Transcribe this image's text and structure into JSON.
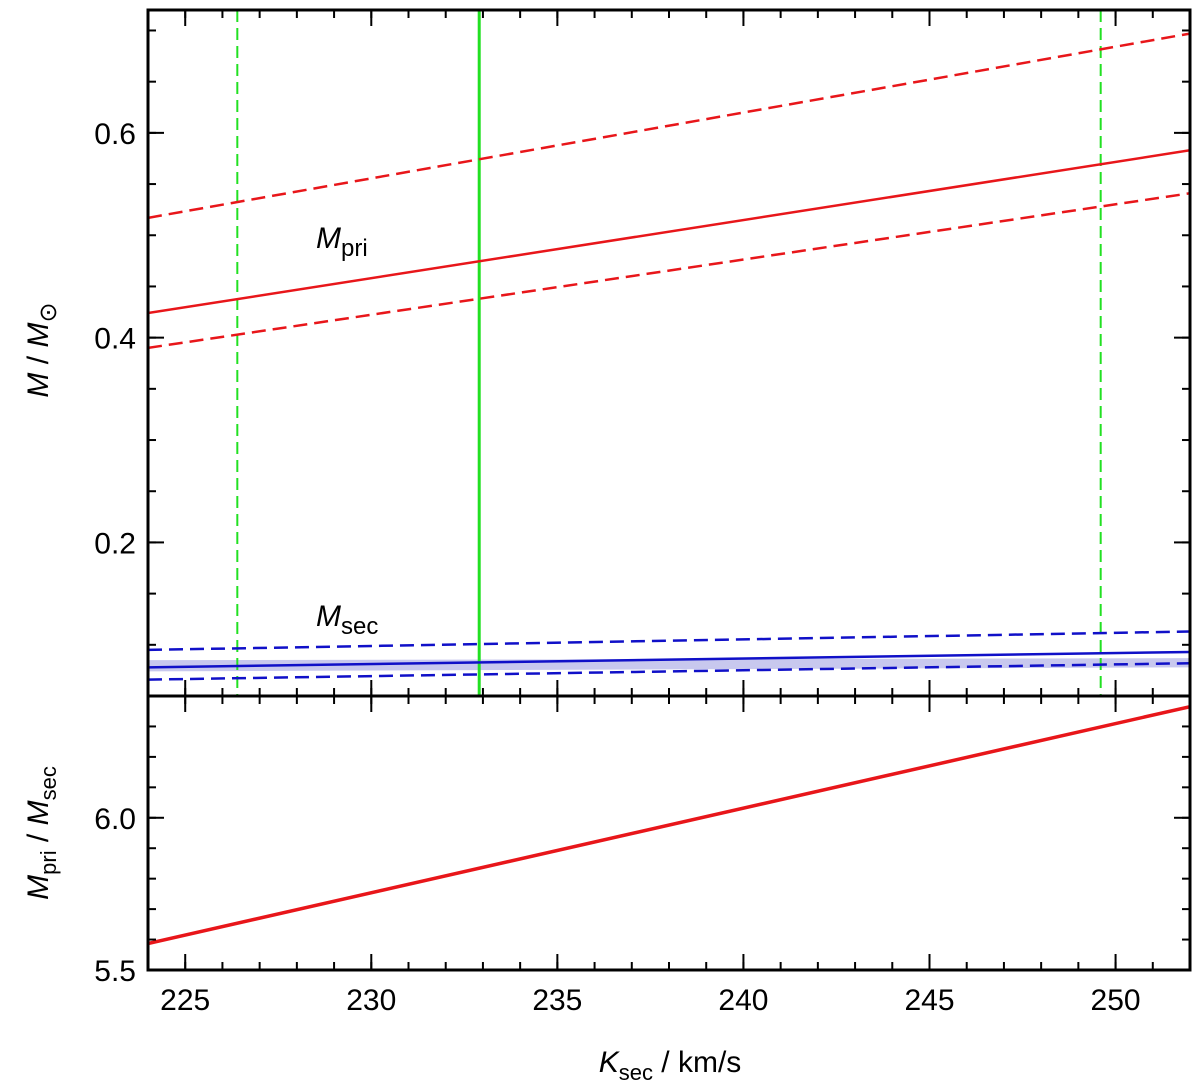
{
  "chart_data": [
    {
      "type": "line",
      "ylabel": [
        "M",
        " / ",
        "M",
        "⊙"
      ],
      "xlim": [
        224,
        252
      ],
      "ylim": [
        0.05,
        0.72
      ],
      "yticks": [
        0.2,
        0.4,
        0.6
      ],
      "xticks": [
        225,
        230,
        235,
        240,
        245,
        250
      ],
      "xminor": [
        224,
        225,
        226,
        227,
        228,
        229,
        230,
        231,
        232,
        233,
        234,
        235,
        236,
        237,
        238,
        239,
        240,
        241,
        242,
        243,
        244,
        245,
        246,
        247,
        248,
        249,
        250,
        251,
        252
      ],
      "yminor": [
        0.05,
        0.1,
        0.15,
        0.2,
        0.25,
        0.3,
        0.35,
        0.4,
        0.45,
        0.5,
        0.55,
        0.6,
        0.65,
        0.7
      ],
      "x": [
        224,
        252
      ],
      "band": {
        "lower": [
          0.074,
          0.078
        ],
        "upper": [
          0.085,
          0.087
        ],
        "color": "#c8c8ee"
      },
      "series": [
        {
          "values": [
            0.424,
            0.583
          ],
          "color": "#e8161a",
          "style": "solid"
        },
        {
          "values": [
            0.517,
            0.697
          ],
          "color": "#e8161a",
          "style": "dashed"
        },
        {
          "values": [
            0.39,
            0.541
          ],
          "color": "#e8161a",
          "style": "dashed"
        },
        {
          "values": [
            0.078,
            0.093
          ],
          "color": "#1010c8",
          "style": "solid"
        },
        {
          "values": [
            0.095,
            0.113
          ],
          "color": "#1010c8",
          "style": "dashed"
        },
        {
          "values": [
            0.066,
            0.082
          ],
          "color": "#1010c8",
          "style": "dashed"
        }
      ],
      "vlines": [
        {
          "x": 232.9,
          "style": "solid",
          "color": "#22e022"
        },
        {
          "x": 226.4,
          "style": "dashed",
          "color": "#22e022"
        },
        {
          "x": 249.6,
          "style": "dashed",
          "color": "#22e022"
        }
      ],
      "annotations": [
        {
          "parts": [
            "M",
            "pri"
          ],
          "color": "#e8161a"
        },
        {
          "parts": [
            "M",
            "sec"
          ],
          "color": "#1010c8"
        }
      ]
    },
    {
      "type": "line",
      "ylabel": [
        "M",
        "pri",
        " / ",
        "M",
        "sec"
      ],
      "xlabel": [
        "K",
        "sec",
        " / km/s"
      ],
      "xlim": [
        224,
        252
      ],
      "ylim": [
        5.5,
        6.4
      ],
      "yticks": [
        5.5,
        {
          "value": 6,
          "label": "6.0"
        }
      ],
      "xticks": [
        225,
        230,
        235,
        240,
        245,
        250
      ],
      "xminor": [
        224,
        225,
        226,
        227,
        228,
        229,
        230,
        231,
        232,
        233,
        234,
        235,
        236,
        237,
        238,
        239,
        240,
        241,
        242,
        243,
        244,
        245,
        246,
        247,
        248,
        249,
        250,
        251,
        252
      ],
      "yminor": [
        5.5,
        5.6,
        5.7,
        5.8,
        5.9,
        6.0,
        6.1,
        6.2,
        6.3,
        6.4
      ],
      "x": [
        224,
        252
      ],
      "series": [
        {
          "values": [
            5.587,
            6.365
          ],
          "color": "#e8161a",
          "style": "solid"
        }
      ]
    }
  ]
}
